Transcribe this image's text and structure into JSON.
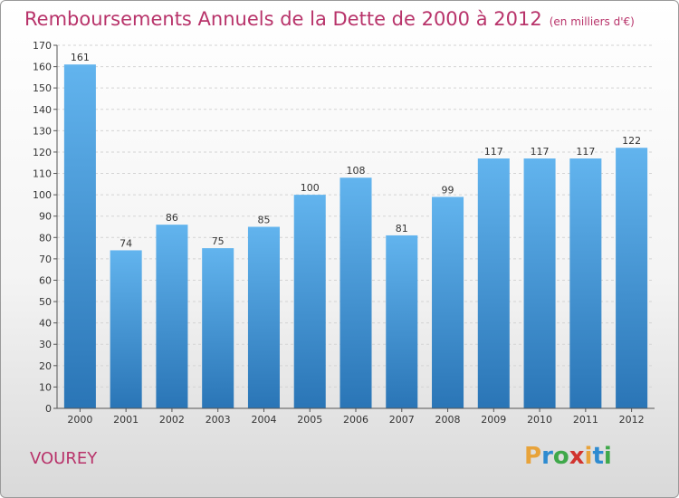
{
  "title": "Remboursements Annuels de la Dette de 2000 à 2012",
  "subtitle": "(en milliers d'€)",
  "commune": "VOUREY",
  "logo": {
    "letters": [
      "P",
      "r",
      "o",
      "x",
      "i",
      "t",
      "i"
    ],
    "colors": [
      "#e8a33a",
      "#2e8bd0",
      "#3fa84a",
      "#d1342f",
      "#e8a33a",
      "#2e8bd0",
      "#3fa84a"
    ]
  },
  "colors": {
    "bar": "#3d94d6",
    "bar_light": "#62b4ee",
    "bar_dark": "#2a75b6",
    "accent": "#b8336a"
  },
  "chart_data": {
    "type": "bar",
    "categories": [
      "2000",
      "2001",
      "2002",
      "2003",
      "2004",
      "2005",
      "2006",
      "2007",
      "2008",
      "2009",
      "2010",
      "2011",
      "2012"
    ],
    "values": [
      161,
      74,
      86,
      75,
      85,
      100,
      108,
      81,
      99,
      117,
      117,
      117,
      122
    ],
    "title": "Remboursements Annuels de la Dette de 2000 à 2012",
    "subtitle": "(en milliers d'€)",
    "ylim": [
      0,
      170
    ],
    "ytick_step": 10,
    "grid": true
  }
}
